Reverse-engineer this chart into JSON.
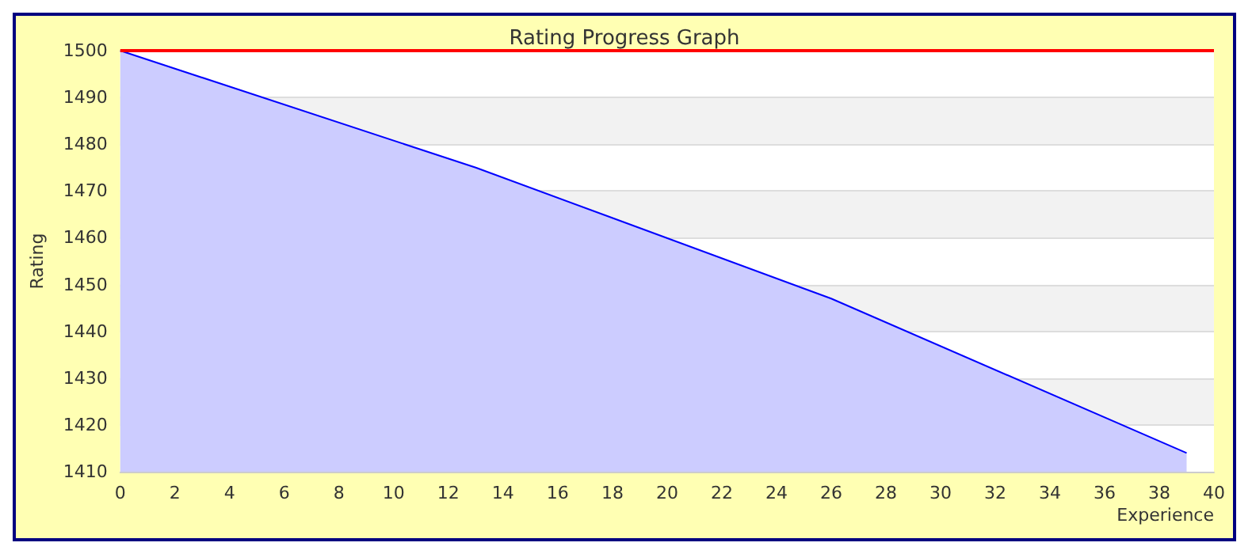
{
  "chart_data": {
    "type": "area",
    "title": "Rating Progress Graph",
    "xlabel": "Experience",
    "ylabel": "Rating",
    "x": [
      0,
      13,
      26,
      39
    ],
    "series": [
      {
        "color": "#0000ff",
        "values": [
          1500,
          1475,
          1447,
          1414
        ]
      }
    ],
    "xlim": [
      0,
      40
    ],
    "xticks": [
      0,
      2,
      4,
      6,
      8,
      10,
      12,
      14,
      16,
      18,
      20,
      22,
      24,
      26,
      28,
      30,
      32,
      34,
      36,
      38,
      40
    ],
    "ylim": [
      1410,
      1500
    ],
    "yticks": [
      1410,
      1420,
      1430,
      1440,
      1450,
      1460,
      1470,
      1480,
      1490,
      1500
    ],
    "ref_lines": [
      {
        "axis": "y",
        "value": 1500,
        "color": "#ff0000"
      }
    ],
    "grid": "y",
    "marker": "none",
    "line_style": "solid"
  }
}
